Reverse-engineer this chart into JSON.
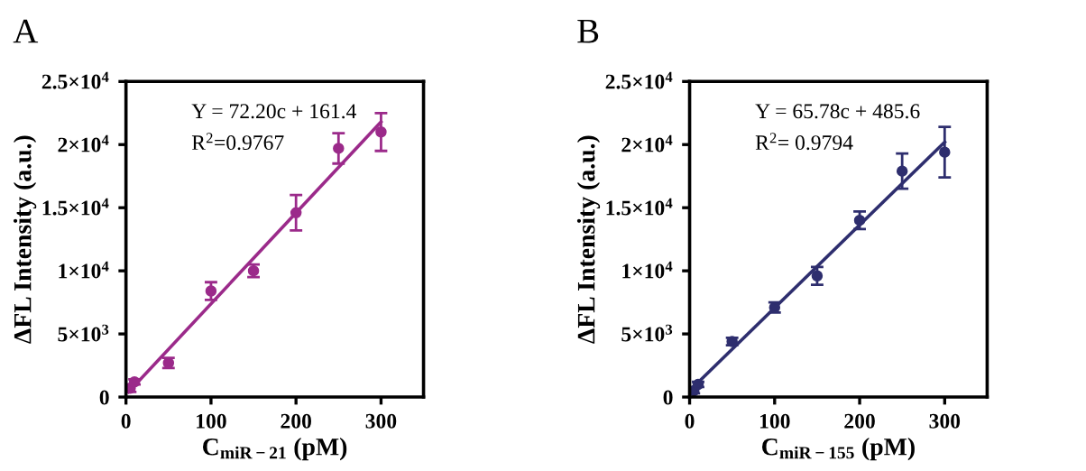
{
  "chart_data": [
    {
      "type": "scatter",
      "title": "A",
      "xlabel": "C$_{miR−21}$ (pM)",
      "ylabel": "ΔFL Intensity (a.u.)",
      "xlim": [
        0,
        350
      ],
      "xticks": [
        0,
        100,
        200,
        300
      ],
      "ylim": [
        0,
        25000
      ],
      "yticks": [
        {
          "value": 0,
          "label": "0"
        },
        {
          "value": 5000,
          "label": "5×10$^{3}$"
        },
        {
          "value": 10000,
          "label": "1×10$^{4}$"
        },
        {
          "value": 15000,
          "label": "1.5×10$^{4}$"
        },
        {
          "value": 20000,
          "label": "2×10$^{4}$"
        },
        {
          "value": 25000,
          "label": "2.5×10$^{4}$"
        }
      ],
      "series": [
        {
          "type": "scatter",
          "marker": "circle",
          "color": "#9b2a8a",
          "x": [
            5,
            10,
            50,
            100,
            150,
            200,
            250,
            300
          ],
          "values": [
            700,
            1200,
            2700,
            8400,
            10000,
            14600,
            19700,
            21000
          ],
          "errors": [
            300,
            200,
            400,
            700,
            500,
            1400,
            1200,
            1500
          ]
        },
        {
          "type": "line",
          "color": "#9b2a8a",
          "x": [
            3,
            300
          ],
          "values": [
            400,
            21800
          ],
          "marker": "none"
        }
      ],
      "annotations": [
        "Y = 72.20c + 161.4",
        "R$^{2}$=0.9767"
      ]
    },
    {
      "type": "scatter",
      "title": "B",
      "xlabel": "C$_{miR−155}$ (pM)",
      "ylabel": "ΔFL Intensity (a.u.)",
      "xlim": [
        0,
        350
      ],
      "xticks": [
        0,
        100,
        200,
        300
      ],
      "ylim": [
        0,
        25000
      ],
      "yticks": [
        {
          "value": 0,
          "label": "0"
        },
        {
          "value": 5000,
          "label": "5×10$^{3}$"
        },
        {
          "value": 10000,
          "label": "1×10$^{4}$"
        },
        {
          "value": 15000,
          "label": "1.5×10$^{4}$"
        },
        {
          "value": 20000,
          "label": "2×10$^{4}$"
        },
        {
          "value": 25000,
          "label": "2.5×10$^{4}$"
        }
      ],
      "series": [
        {
          "type": "scatter",
          "marker": "circle",
          "color": "#2e2e6e",
          "x": [
            5,
            10,
            50,
            100,
            150,
            200,
            250,
            300
          ],
          "values": [
            500,
            1000,
            4400,
            7100,
            9600,
            14000,
            17900,
            19400
          ],
          "errors": [
            200,
            200,
            300,
            400,
            700,
            700,
            1400,
            2000
          ]
        },
        {
          "type": "line",
          "color": "#2e2e6e",
          "x": [
            3,
            300
          ],
          "values": [
            700,
            20200
          ],
          "marker": "none"
        }
      ],
      "annotations": [
        "Y = 65.78c + 485.6",
        "R$^{2}$= 0.9794"
      ]
    }
  ]
}
